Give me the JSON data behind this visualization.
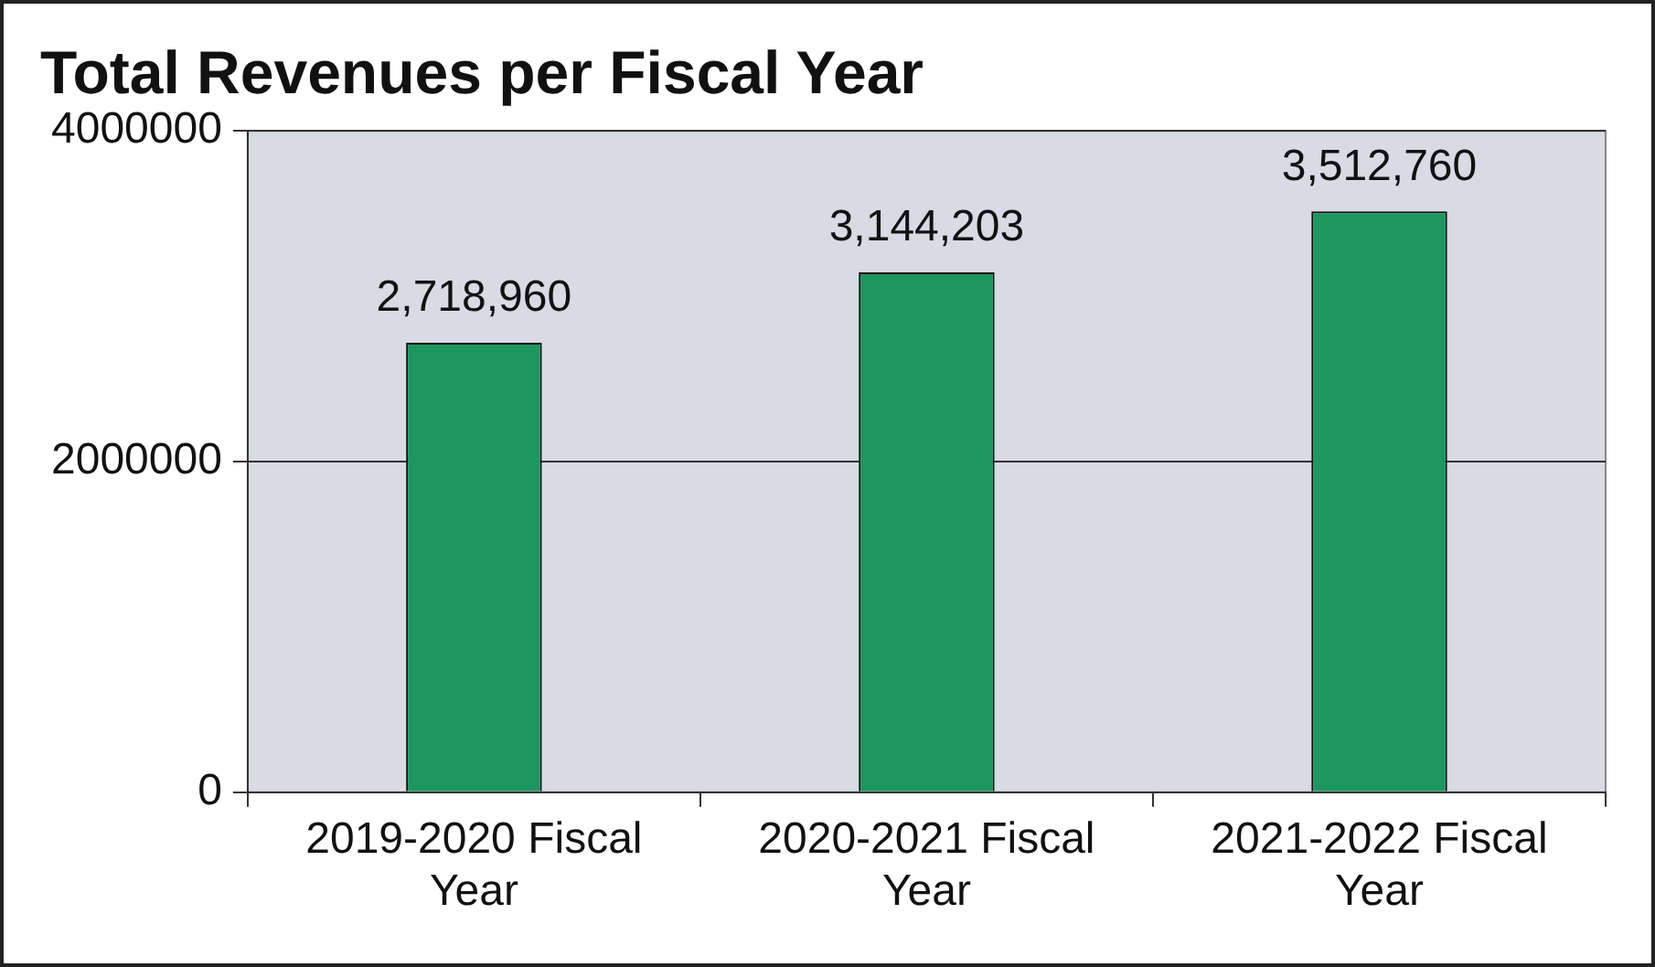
{
  "chart_data": {
    "type": "bar",
    "title": "Total Revenues per Fiscal Year",
    "categories": [
      "2019-2020 Fiscal Year",
      "2020-2021 Fiscal Year",
      "2021-2022 Fiscal Year"
    ],
    "values": [
      2718960,
      3144203,
      3512760
    ],
    "value_labels": [
      "2,718,960",
      "3,144,203",
      "3,512,760"
    ],
    "color": "#1e9660",
    "ylim": [
      0,
      4000000
    ],
    "yticks": [
      0,
      2000000,
      4000000
    ],
    "grid": "y",
    "legend": false
  }
}
